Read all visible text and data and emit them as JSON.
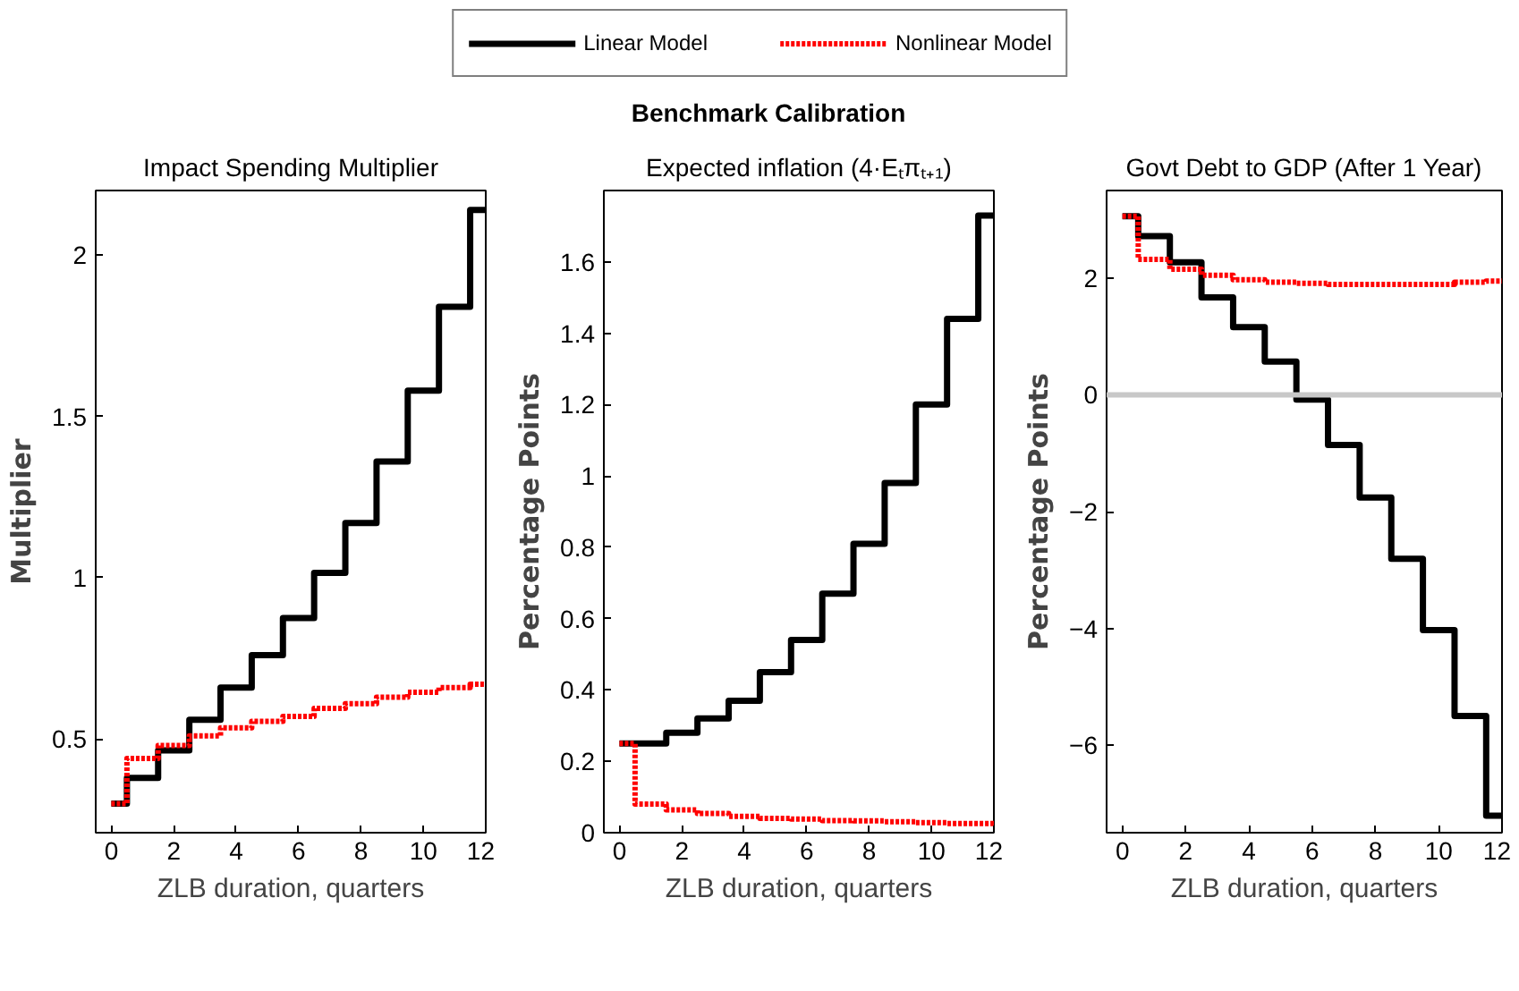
{
  "chart_data": [
    {
      "type": "step",
      "title": "Impact Spending Multiplier",
      "xlabel": "ZLB duration, quarters",
      "ylabel": "Multiplier",
      "legend": "top",
      "grid": false,
      "x": [
        0,
        1,
        2,
        3,
        4,
        5,
        6,
        7,
        8,
        9,
        10,
        11,
        12
      ],
      "xlim": [
        -0.5,
        12
      ],
      "xticks": [
        0,
        2,
        4,
        6,
        8,
        10,
        12
      ],
      "ylim": [
        0.21,
        2.2
      ],
      "yticks": [
        0.5,
        1,
        1.5,
        2
      ],
      "series": [
        {
          "name": "Linear Model",
          "color": "#000000",
          "line_style": "solid",
          "values": [
            0.3,
            0.38,
            0.465,
            0.56,
            0.66,
            0.76,
            0.875,
            1.015,
            1.17,
            1.36,
            1.58,
            1.84,
            2.14
          ]
        },
        {
          "name": "Nonlinear Model",
          "color": "#ff0000",
          "line_style": "dotted",
          "values": [
            0.3,
            0.44,
            0.48,
            0.51,
            0.535,
            0.555,
            0.57,
            0.595,
            0.61,
            0.63,
            0.645,
            0.66,
            0.67
          ]
        }
      ]
    },
    {
      "type": "step",
      "title": "Expected inflation (4·Eₜπₜ₊₁)",
      "annotations": [
        "Benchmark Calibration"
      ],
      "xlabel": "ZLB duration, quarters",
      "ylabel": "Percentage Points",
      "grid": false,
      "x": [
        0,
        1,
        2,
        3,
        4,
        5,
        6,
        7,
        8,
        9,
        10,
        11,
        12
      ],
      "xlim": [
        -0.5,
        12
      ],
      "xticks": [
        0,
        2,
        4,
        6,
        8,
        10,
        12
      ],
      "ylim": [
        0,
        1.8
      ],
      "yticks": [
        0,
        0.2,
        0.4,
        0.6,
        0.8,
        1,
        1.2,
        1.4,
        1.6
      ],
      "series": [
        {
          "color": "#000000",
          "line_style": "solid",
          "values": [
            0.25,
            0.25,
            0.28,
            0.32,
            0.37,
            0.45,
            0.54,
            0.67,
            0.81,
            0.98,
            1.2,
            1.44,
            1.73
          ]
        },
        {
          "color": "#ff0000",
          "line_style": "dotted",
          "values": [
            0.25,
            0.08,
            0.064,
            0.054,
            0.046,
            0.04,
            0.038,
            0.034,
            0.033,
            0.031,
            0.028,
            0.026,
            0.026
          ]
        }
      ]
    },
    {
      "type": "step",
      "title": "Govt Debt to GDP (After 1 Year)",
      "xlabel": "ZLB duration, quarters",
      "ylabel": "Percentage Points",
      "grid": false,
      "x": [
        0,
        1,
        2,
        3,
        4,
        5,
        6,
        7,
        8,
        9,
        10,
        11,
        12
      ],
      "xlim": [
        -0.5,
        12
      ],
      "xticks": [
        0,
        2,
        4,
        6,
        8,
        10,
        12
      ],
      "ylim": [
        -7.5,
        3.5
      ],
      "yticks": [
        -6,
        -4,
        -2,
        0,
        2
      ],
      "ref_lines": [
        {
          "axis": "y",
          "value": 0,
          "color": "#c8c8c8",
          "line_style": "solid"
        }
      ],
      "series": [
        {
          "color": "#000000",
          "line_style": "solid",
          "values": [
            3.06,
            2.72,
            2.27,
            1.67,
            1.16,
            0.57,
            -0.08,
            -0.86,
            -1.76,
            -2.81,
            -4.03,
            -5.5,
            -7.21
          ]
        },
        {
          "color": "#ff0000",
          "line_style": "dotted",
          "values": [
            3.06,
            2.32,
            2.15,
            2.05,
            1.97,
            1.93,
            1.91,
            1.89,
            1.89,
            1.89,
            1.89,
            1.93,
            1.95
          ]
        }
      ]
    }
  ]
}
